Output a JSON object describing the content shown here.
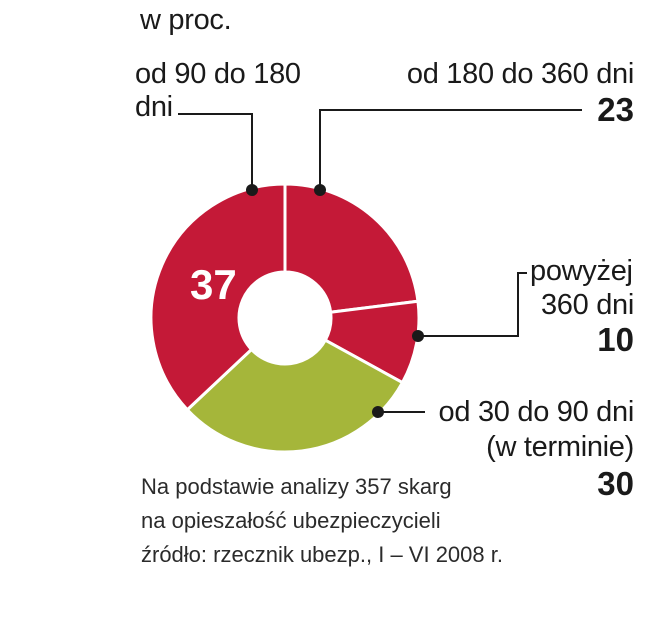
{
  "subtitle": "w proc.",
  "chart_data": {
    "type": "pie",
    "style": "donut",
    "subtitle": "w proc.",
    "slices": [
      {
        "label": "od 180 do 360 dni",
        "value": 23,
        "color": "#c41937"
      },
      {
        "label": "powyżej 360 dni",
        "value": 10,
        "color": "#c41937"
      },
      {
        "label": "od 30 do 90 dni (w terminie)",
        "value": 30,
        "color": "#a5b63a"
      },
      {
        "label": "od 90 do 180 dni",
        "value": 37,
        "color": "#c41937"
      }
    ]
  },
  "labels": {
    "l90_180_line1": "od 90 do 180",
    "l90_180_line2": "dni",
    "l180_360": "od 180 do 360 dni",
    "v180_360": "23",
    "l360_line1": "powyżej",
    "l360_line2": "360 dni",
    "v360": "10",
    "l30_90_line1": "od 30 do 90 dni",
    "l30_90_line2": "(w terminie)",
    "v30_90": "30",
    "v90_180": "37"
  },
  "notes": {
    "line1": "Na podstawie  analizy 357 skarg",
    "line2": "na opieszałość ubezpieczycieli",
    "line3": "źródło: rzecznik ubezp., I – VI 2008 r."
  }
}
